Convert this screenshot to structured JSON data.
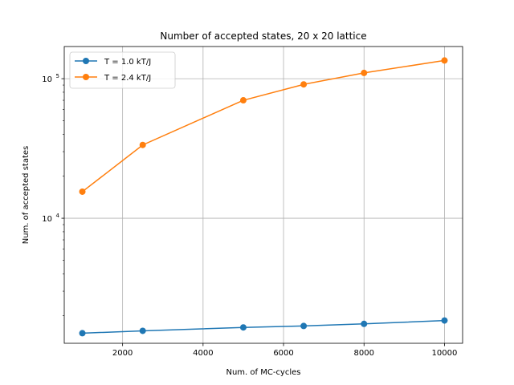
{
  "chart_data": {
    "type": "line",
    "title": "Number of accepted states, 20 x 20 lattice",
    "xlabel": "Num. of MC-cycles",
    "ylabel": "Num. of accepted states",
    "x": [
      1000,
      2500,
      5000,
      6500,
      8000,
      10000
    ],
    "series": [
      {
        "name": "T = 1.0 kT/J",
        "color": "#1f77b4",
        "values": [
          1500,
          1560,
          1650,
          1690,
          1750,
          1850
        ]
      },
      {
        "name": "T = 2.4 kT/J",
        "color": "#ff7f0e",
        "values": [
          15500,
          33500,
          70000,
          91000,
          110000,
          135000
        ]
      }
    ],
    "xlim": [
      550,
      10450
    ],
    "ylim": [
      1270,
      170000
    ],
    "yscale": "log",
    "xticks": [
      2000,
      4000,
      6000,
      8000,
      10000
    ],
    "xtick_labels": [
      "2000",
      "4000",
      "6000",
      "8000",
      "10000"
    ],
    "yticks": [
      10000,
      100000
    ],
    "ytick_labels": [
      {
        "base": "10",
        "exp": "4"
      },
      {
        "base": "10",
        "exp": "5"
      }
    ],
    "grid": true,
    "legend_position": "upper-left",
    "marker": "circle"
  }
}
